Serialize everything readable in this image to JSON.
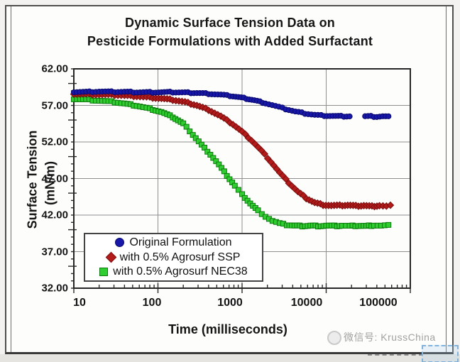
{
  "chart": {
    "title_line1": "Dynamic Surface Tension Data on",
    "title_line2": "Pesticide Formulations with Added Surfactant",
    "x_axis": {
      "label": "Time (milliseconds)",
      "ticks": [
        "10",
        "100",
        "1000",
        "10000",
        "100000"
      ]
    },
    "y_axis": {
      "label_line1": "Surface Tension",
      "label_line2": "(mN/m)",
      "ticks": [
        "62.00",
        "57.00",
        "52.00",
        "47.00",
        "42.00",
        "37.00",
        "32.00"
      ]
    },
    "legend": {
      "items": [
        {
          "label": "Original Formulation",
          "marker": "circle",
          "color": "#1717aa",
          "edge": "#0b0b6e"
        },
        {
          "label": "with 0.5% Agrosurf SSP",
          "marker": "diamond",
          "color": "#b31b1b",
          "edge": "#7c0e0e"
        },
        {
          "label": "with 0.5% Agrosurf NEC38",
          "marker": "square",
          "color": "#30cd30",
          "edge": "#0c7a0c"
        }
      ]
    },
    "watermark_text": "微信号: KrussChina"
  },
  "chart_data": {
    "type": "scatter",
    "title": "Dynamic Surface Tension Data on Pesticide Formulations with Added Surfactant",
    "xlabel": "Time (milliseconds)",
    "ylabel": "Surface Tension (mN/m)",
    "x_scale": "log",
    "xlim": [
      10,
      100000
    ],
    "ylim": [
      32,
      62
    ],
    "y_major_step": 5,
    "grid": true,
    "legend_position": "lower-left",
    "series": [
      {
        "name": "Original Formulation",
        "marker": "circle",
        "color": "#1717aa",
        "edge": "#0b0b6e",
        "segments": [
          [
            [
              10,
              58.85
            ],
            [
              14,
              58.85
            ],
            [
              20,
              58.9
            ],
            [
              28,
              58.85
            ],
            [
              40,
              58.85
            ],
            [
              56,
              58.8
            ],
            [
              80,
              58.8
            ],
            [
              110,
              58.8
            ],
            [
              150,
              58.8
            ],
            [
              210,
              58.75
            ],
            [
              290,
              58.7
            ],
            [
              400,
              58.6
            ],
            [
              560,
              58.45
            ],
            [
              780,
              58.25
            ],
            [
              1050,
              58.0
            ],
            [
              1400,
              57.7
            ],
            [
              1900,
              57.3
            ],
            [
              2500,
              56.9
            ],
            [
              3300,
              56.5
            ],
            [
              4300,
              56.15
            ],
            [
              5600,
              55.9
            ],
            [
              7300,
              55.7
            ],
            [
              9500,
              55.6
            ],
            [
              12000,
              55.55
            ],
            [
              15000,
              55.5
            ],
            [
              19000,
              55.5
            ]
          ],
          [
            [
              29000,
              55.5
            ],
            [
              34000,
              55.5
            ],
            [
              40000,
              55.45
            ],
            [
              47000,
              55.5
            ],
            [
              55000,
              55.45
            ]
          ]
        ]
      },
      {
        "name": "with 0.5% Agrosurf SSP",
        "marker": "diamond",
        "color": "#b31b1b",
        "edge": "#7c0e0e",
        "segments": [
          [
            [
              10,
              58.6
            ],
            [
              14,
              58.55
            ],
            [
              20,
              58.5
            ],
            [
              28,
              58.45
            ],
            [
              40,
              58.35
            ],
            [
              56,
              58.25
            ],
            [
              80,
              58.1
            ],
            [
              110,
              57.95
            ],
            [
              150,
              57.75
            ],
            [
              210,
              57.45
            ],
            [
              290,
              57.0
            ],
            [
              400,
              56.4
            ],
            [
              560,
              55.5
            ],
            [
              780,
              54.4
            ],
            [
              1000,
              53.4
            ],
            [
              1300,
              52.2
            ],
            [
              1700,
              50.8
            ],
            [
              2200,
              49.3
            ],
            [
              2800,
              47.8
            ],
            [
              3600,
              46.4
            ],
            [
              4600,
              45.2
            ],
            [
              5800,
              44.3
            ],
            [
              7300,
              43.7
            ],
            [
              9200,
              43.4
            ],
            [
              11500,
              43.3
            ],
            [
              14500,
              43.3
            ],
            [
              18000,
              43.35
            ],
            [
              22500,
              43.25
            ],
            [
              28000,
              43.3
            ],
            [
              35000,
              43.2
            ],
            [
              43000,
              43.3
            ],
            [
              52000,
              43.2
            ],
            [
              58000,
              43.3
            ]
          ]
        ]
      },
      {
        "name": "with 0.5% Agrosurf NEC38",
        "marker": "square",
        "color": "#30cd30",
        "edge": "#0c7a0c",
        "segments": [
          [
            [
              10,
              57.9
            ],
            [
              14,
              57.8
            ],
            [
              20,
              57.65
            ],
            [
              28,
              57.5
            ],
            [
              40,
              57.25
            ],
            [
              56,
              56.95
            ],
            [
              80,
              56.55
            ],
            [
              110,
              56.1
            ],
            [
              150,
              55.4
            ],
            [
              200,
              54.5
            ],
            [
              260,
              53.0
            ],
            [
              330,
              51.6
            ],
            [
              420,
              50.3
            ],
            [
              530,
              48.9
            ],
            [
              660,
              47.4
            ],
            [
              820,
              46.0
            ],
            [
              1000,
              44.8
            ],
            [
              1250,
              43.6
            ],
            [
              1550,
              42.6
            ],
            [
              1900,
              41.8
            ],
            [
              2300,
              41.2
            ],
            [
              2800,
              40.85
            ],
            [
              3400,
              40.65
            ],
            [
              4200,
              40.55
            ],
            [
              5200,
              40.5
            ],
            [
              6500,
              40.55
            ],
            [
              8000,
              40.5
            ],
            [
              10000,
              40.55
            ],
            [
              12500,
              40.5
            ],
            [
              15500,
              40.55
            ],
            [
              19000,
              40.5
            ],
            [
              24000,
              40.55
            ],
            [
              30000,
              40.5
            ],
            [
              37000,
              40.6
            ],
            [
              45000,
              40.55
            ],
            [
              55000,
              40.6
            ]
          ]
        ]
      }
    ]
  }
}
